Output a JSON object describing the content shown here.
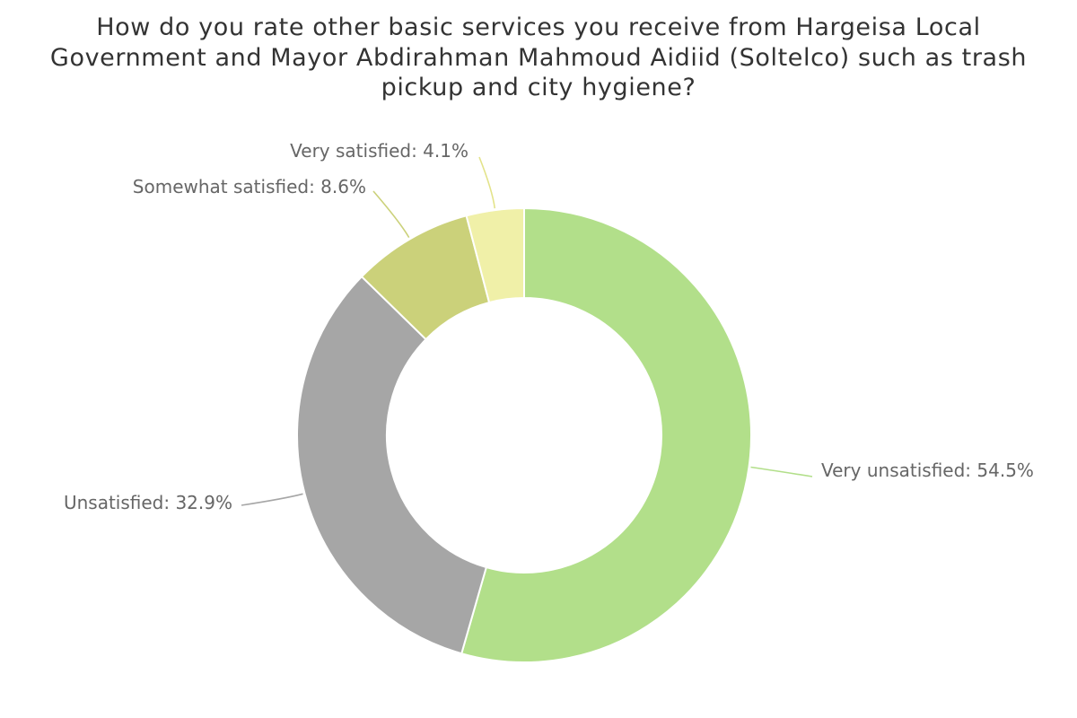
{
  "chart_data": {
    "type": "pie",
    "variant": "donut",
    "title": "How do you rate other basic services you receive from Hargeisa Local Government and Mayor Abdirahman Mahmoud Aidiid (Soltelco) such as trash pickup and city hygiene?",
    "series": [
      {
        "slices": [
          {
            "name": "Very unsatisfied",
            "value": 54.5,
            "color": "#b2df8a"
          },
          {
            "name": "Unsatisfied",
            "value": 32.9,
            "color": "#a6a6a6"
          },
          {
            "name": "Somewhat satisfied",
            "value": 8.6,
            "color": "#cbd17a"
          },
          {
            "name": "Very satisfied",
            "value": 4.1,
            "color": "#f0f0a8"
          }
        ]
      }
    ],
    "labels": [
      "Very unsatisfied: 54.5%",
      "Unsatisfied: 32.9%",
      "Somewhat satisfied: 8.6%",
      "Very satisfied: 4.1%"
    ],
    "legend": "none"
  }
}
